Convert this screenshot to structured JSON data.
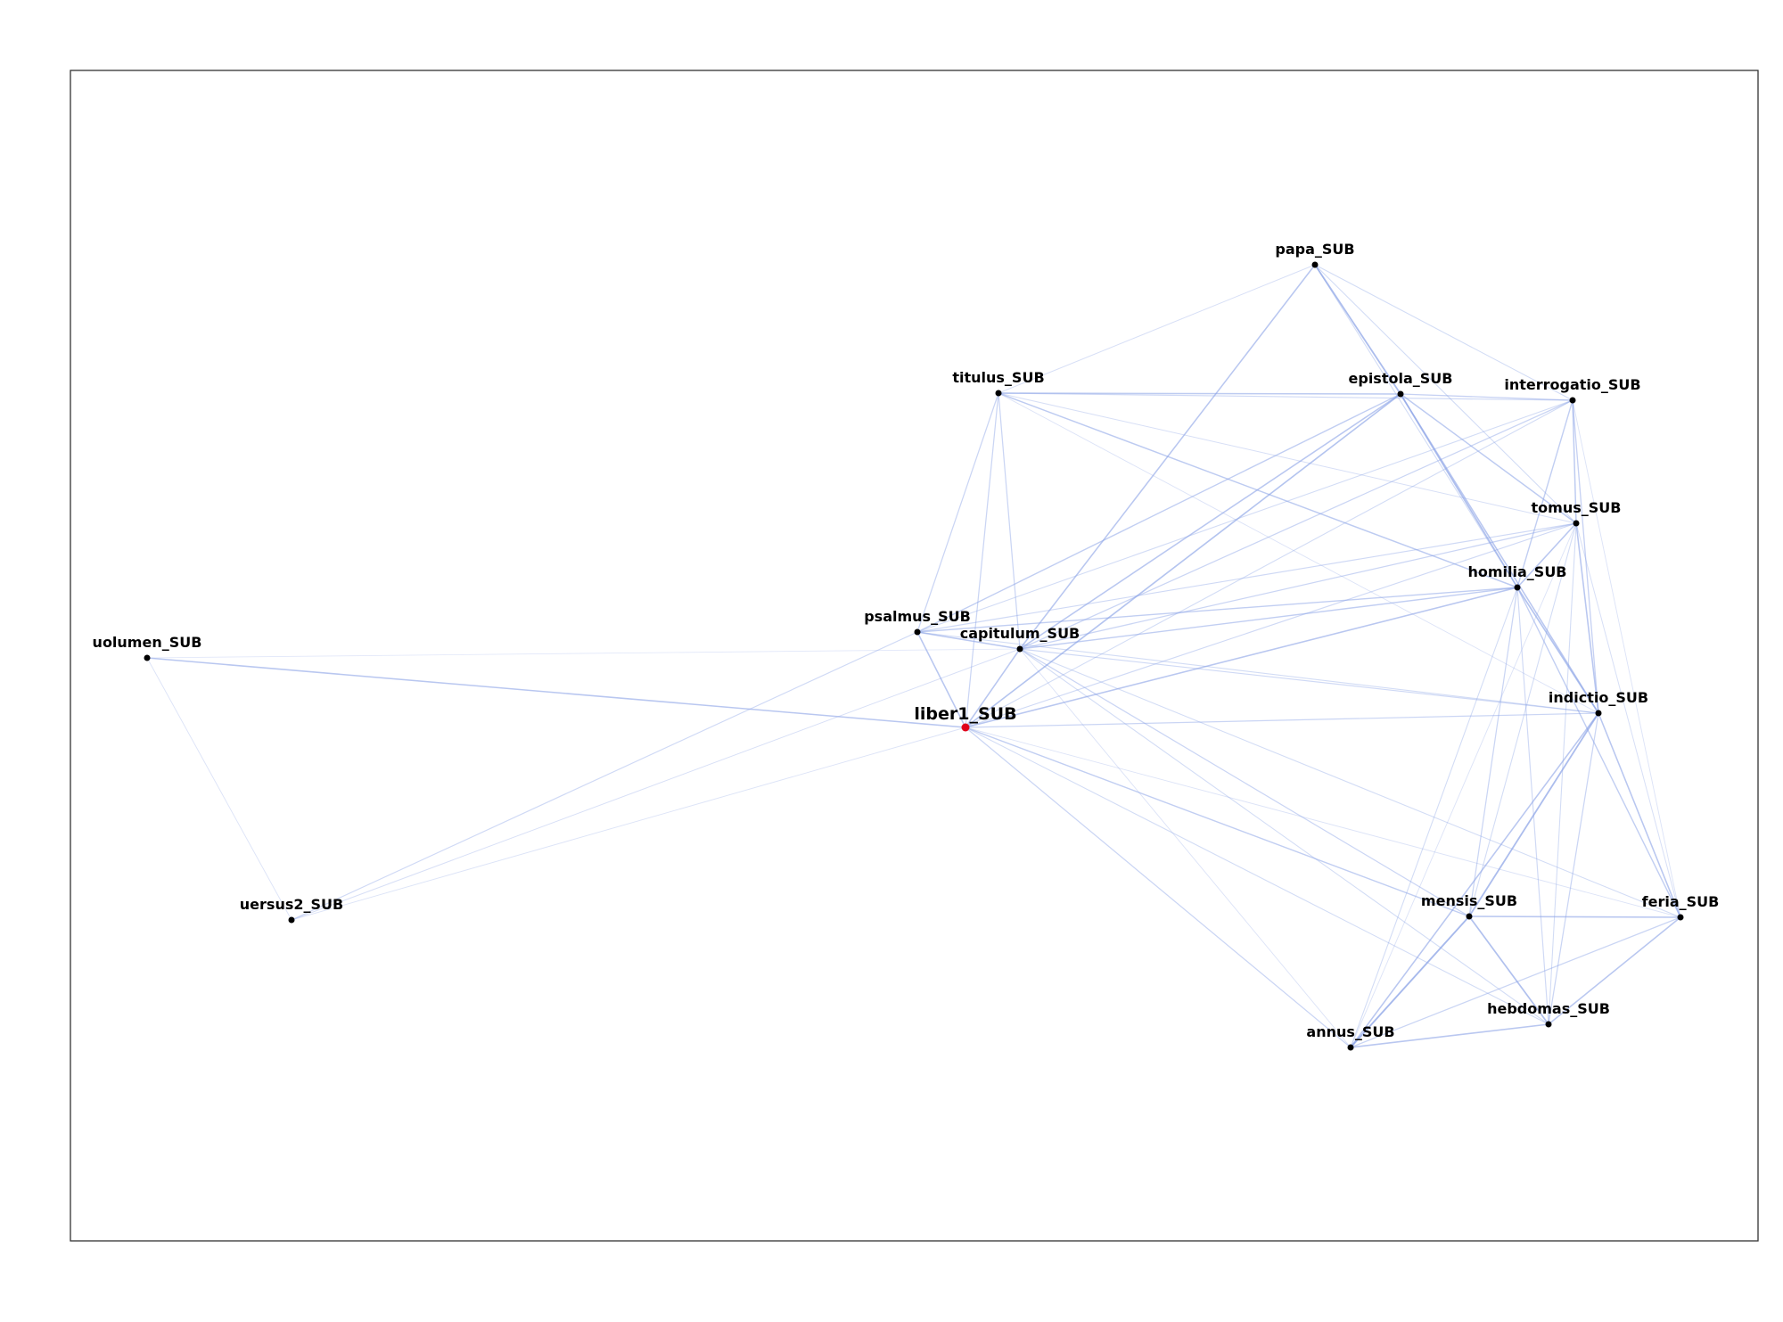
{
  "nodes": [
    {
      "id": "papa",
      "label": "papa_SUB"
    },
    {
      "id": "titulus",
      "label": "titulus_SUB"
    },
    {
      "id": "epistola",
      "label": "epistola_SUB"
    },
    {
      "id": "interrogatio",
      "label": "interrogatio_SUB"
    },
    {
      "id": "tomus",
      "label": "tomus_SUB"
    },
    {
      "id": "homilia",
      "label": "homilia_SUB"
    },
    {
      "id": "psalmus",
      "label": "psalmus_SUB"
    },
    {
      "id": "capitulum",
      "label": "capitulum_SUB"
    },
    {
      "id": "uolumen",
      "label": "uolumen_SUB"
    },
    {
      "id": "liber1",
      "label": "liber1_SUB",
      "highlight": true
    },
    {
      "id": "indictio",
      "label": "indictio_SUB"
    },
    {
      "id": "uersus2",
      "label": "uersus2_SUB"
    },
    {
      "id": "mensis",
      "label": "mensis_SUB"
    },
    {
      "id": "feria",
      "label": "feria_SUB"
    },
    {
      "id": "hebdomas",
      "label": "hebdomas_SUB"
    },
    {
      "id": "annus",
      "label": "annus_SUB"
    }
  ],
  "edges": [
    [
      "papa",
      "epistola",
      0.75
    ],
    [
      "papa",
      "capitulum",
      0.6
    ],
    [
      "papa",
      "titulus",
      0.25
    ],
    [
      "papa",
      "interrogatio",
      0.3
    ],
    [
      "papa",
      "tomus",
      0.3
    ],
    [
      "papa",
      "homilia",
      0.3
    ],
    [
      "titulus",
      "epistola",
      0.55
    ],
    [
      "titulus",
      "interrogatio",
      0.35
    ],
    [
      "titulus",
      "psalmus",
      0.4
    ],
    [
      "titulus",
      "capitulum",
      0.4
    ],
    [
      "titulus",
      "liber1",
      0.4
    ],
    [
      "titulus",
      "homilia",
      0.55
    ],
    [
      "titulus",
      "tomus",
      0.25
    ],
    [
      "titulus",
      "indictio",
      0.2
    ],
    [
      "epistola",
      "interrogatio",
      0.45
    ],
    [
      "epistola",
      "tomus",
      0.55
    ],
    [
      "epistola",
      "homilia",
      0.7
    ],
    [
      "epistola",
      "indictio",
      0.6
    ],
    [
      "epistola",
      "capitulum",
      0.6
    ],
    [
      "epistola",
      "liber1",
      0.65
    ],
    [
      "epistola",
      "psalmus",
      0.5
    ],
    [
      "interrogatio",
      "tomus",
      0.55
    ],
    [
      "interrogatio",
      "homilia",
      0.5
    ],
    [
      "interrogatio",
      "capitulum",
      0.4
    ],
    [
      "interrogatio",
      "liber1",
      0.3
    ],
    [
      "interrogatio",
      "indictio",
      0.45
    ],
    [
      "interrogatio",
      "psalmus",
      0.3
    ],
    [
      "interrogatio",
      "feria",
      0.2
    ],
    [
      "tomus",
      "homilia",
      0.6
    ],
    [
      "tomus",
      "indictio",
      0.6
    ],
    [
      "tomus",
      "capitulum",
      0.4
    ],
    [
      "tomus",
      "psalmus",
      0.35
    ],
    [
      "tomus",
      "liber1",
      0.35
    ],
    [
      "tomus",
      "mensis",
      0.3
    ],
    [
      "tomus",
      "hebdomas",
      0.3
    ],
    [
      "tomus",
      "feria",
      0.25
    ],
    [
      "tomus",
      "annus",
      0.2
    ],
    [
      "homilia",
      "capitulum",
      0.5
    ],
    [
      "homilia",
      "psalmus",
      0.5
    ],
    [
      "homilia",
      "liber1",
      0.6
    ],
    [
      "homilia",
      "indictio",
      0.65
    ],
    [
      "homilia",
      "feria",
      0.5
    ],
    [
      "homilia",
      "mensis",
      0.4
    ],
    [
      "homilia",
      "hebdomas",
      0.35
    ],
    [
      "homilia",
      "annus",
      0.3
    ],
    [
      "psalmus",
      "capitulum",
      0.6
    ],
    [
      "psalmus",
      "liber1",
      0.6
    ],
    [
      "psalmus",
      "uersus2",
      0.35
    ],
    [
      "psalmus",
      "indictio",
      0.3
    ],
    [
      "capitulum",
      "liber1",
      0.6
    ],
    [
      "capitulum",
      "uersus2",
      0.25
    ],
    [
      "capitulum",
      "indictio",
      0.35
    ],
    [
      "capitulum",
      "mensis",
      0.4
    ],
    [
      "capitulum",
      "hebdomas",
      0.3
    ],
    [
      "capitulum",
      "feria",
      0.3
    ],
    [
      "capitulum",
      "annus",
      0.2
    ],
    [
      "uolumen",
      "liber1",
      0.6
    ],
    [
      "uolumen",
      "uersus2",
      0.2
    ],
    [
      "uolumen",
      "capitulum",
      0.15
    ],
    [
      "liber1",
      "indictio",
      0.4
    ],
    [
      "liber1",
      "mensis",
      0.5
    ],
    [
      "liber1",
      "annus",
      0.4
    ],
    [
      "liber1",
      "hebdomas",
      0.3
    ],
    [
      "liber1",
      "feria",
      0.2
    ],
    [
      "liber1",
      "uersus2",
      0.2
    ],
    [
      "indictio",
      "mensis",
      0.75
    ],
    [
      "indictio",
      "annus",
      0.6
    ],
    [
      "indictio",
      "feria",
      0.6
    ],
    [
      "indictio",
      "hebdomas",
      0.4
    ],
    [
      "mensis",
      "feria",
      0.6
    ],
    [
      "mensis",
      "hebdomas",
      0.7
    ],
    [
      "mensis",
      "annus",
      0.8
    ],
    [
      "feria",
      "hebdomas",
      0.6
    ],
    [
      "feria",
      "annus",
      0.4
    ],
    [
      "hebdomas",
      "annus",
      0.6
    ]
  ],
  "colors": {
    "edge": "#8aa2e6",
    "node": "#000000",
    "highlight": "#e0001a",
    "frame": "#333333"
  }
}
